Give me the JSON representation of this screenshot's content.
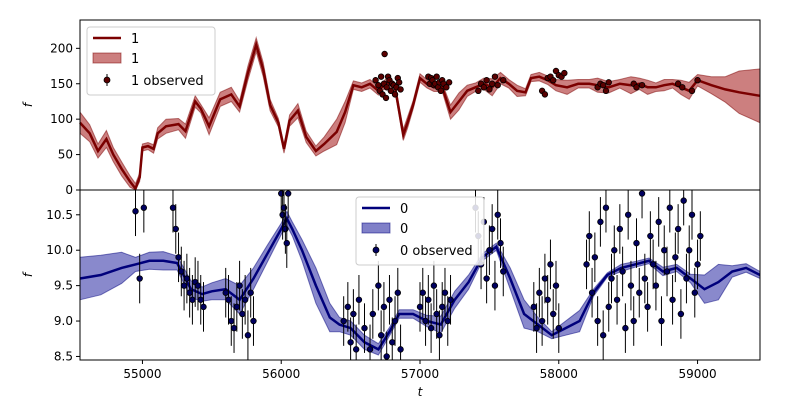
{
  "chart_data": [
    {
      "type": "line",
      "panel": "top",
      "xlabel": "",
      "ylabel": "f",
      "xlim": [
        54550,
        59450
      ],
      "ylim": [
        0,
        240
      ],
      "yticks": [
        0,
        50,
        100,
        150,
        200
      ],
      "xticks": [],
      "legend_position": "top-left",
      "legend": [
        {
          "label": "1",
          "kind": "line"
        },
        {
          "label": "1",
          "kind": "band"
        },
        {
          "label": "1 observed",
          "kind": "errorbar"
        }
      ],
      "colors": {
        "line": "#7b0000",
        "band": "#b03a3a",
        "marker": "#5a0000"
      },
      "series": [
        {
          "role": "mean",
          "x": [
            54550,
            54620,
            54680,
            54740,
            54790,
            54850,
            54910,
            54950,
            54980,
            55000,
            55040,
            55080,
            55110,
            55170,
            55260,
            55310,
            55380,
            55420,
            55480,
            55560,
            55640,
            55700,
            55760,
            55820,
            55870,
            55920,
            55980,
            56020,
            56060,
            56120,
            56180,
            56250,
            56310,
            56400,
            56460,
            56520,
            56580,
            56640,
            56700,
            56760,
            56820,
            56880,
            56910,
            56950,
            57000,
            57050,
            57100,
            57160,
            57220,
            57280,
            57340,
            57400,
            57460,
            57520,
            57580,
            57640,
            57700,
            57760,
            57800,
            57860,
            57920,
            57980,
            58060,
            58140,
            58220,
            58280,
            58360,
            58440,
            58520,
            58580,
            58640,
            58700,
            58760,
            58820,
            58880,
            58940,
            59000,
            59100,
            59200,
            59300,
            59450
          ],
          "y": [
            95,
            80,
            55,
            72,
            50,
            30,
            12,
            2,
            18,
            60,
            62,
            58,
            80,
            90,
            93,
            83,
            125,
            115,
            90,
            128,
            135,
            118,
            165,
            205,
            170,
            120,
            95,
            58,
            98,
            112,
            75,
            55,
            65,
            82,
            110,
            148,
            145,
            150,
            140,
            152,
            145,
            78,
            95,
            120,
            158,
            150,
            145,
            145,
            110,
            125,
            140,
            145,
            150,
            145,
            158,
            150,
            140,
            138,
            158,
            160,
            155,
            148,
            145,
            150,
            150,
            148,
            145,
            150,
            148,
            150,
            145,
            145,
            148,
            150,
            145,
            140,
            155,
            148,
            142,
            138,
            133
          ],
          "band_half_width": [
            15,
            12,
            10,
            12,
            10,
            10,
            8,
            7,
            6,
            5,
            5,
            6,
            8,
            10,
            8,
            10,
            8,
            6,
            12,
            10,
            10,
            8,
            10,
            10,
            10,
            8,
            6,
            6,
            8,
            10,
            8,
            7,
            10,
            18,
            15,
            6,
            6,
            6,
            6,
            6,
            6,
            8,
            8,
            6,
            6,
            6,
            6,
            6,
            10,
            12,
            8,
            6,
            8,
            12,
            8,
            6,
            8,
            5,
            5,
            6,
            6,
            8,
            10,
            6,
            6,
            10,
            8,
            6,
            12,
            8,
            10,
            6,
            8,
            6,
            10,
            12,
            8,
            12,
            18,
            30,
            38
          ]
        },
        {
          "role": "observed",
          "x": [
            56680,
            56700,
            56710,
            56720,
            56730,
            56740,
            56745,
            56755,
            56760,
            56770,
            56780,
            56790,
            56800,
            56810,
            56820,
            56830,
            56840,
            56850,
            56860,
            57060,
            57070,
            57080,
            57090,
            57100,
            57110,
            57120,
            57130,
            57140,
            57150,
            57160,
            57170,
            57190,
            57210,
            57420,
            57440,
            57460,
            57480,
            57500,
            57520,
            57540,
            57560,
            57600,
            57880,
            57900,
            57920,
            57940,
            57960,
            57980,
            58000,
            58020,
            58040,
            58280,
            58300,
            58320,
            58340,
            58360,
            58540,
            58560,
            58600,
            58860,
            58890,
            58960,
            59000
          ],
          "y": [
            155,
            148,
            140,
            160,
            135,
            150,
            192,
            130,
            145,
            160,
            155,
            140,
            150,
            148,
            135,
            145,
            158,
            152,
            142,
            160,
            150,
            158,
            155,
            148,
            150,
            160,
            145,
            152,
            140,
            155,
            150,
            145,
            152,
            140,
            150,
            145,
            155,
            142,
            150,
            160,
            148,
            155,
            140,
            135,
            158,
            160,
            155,
            168,
            162,
            160,
            165,
            145,
            150,
            148,
            140,
            152,
            150,
            145,
            148,
            150,
            145,
            140,
            155
          ]
        }
      ]
    },
    {
      "type": "line",
      "panel": "bottom",
      "xlabel": "t",
      "ylabel": "f",
      "xlim": [
        54550,
        59450
      ],
      "ylim": [
        8.45,
        10.85
      ],
      "yticks": [
        8.5,
        9.0,
        9.5,
        10.0,
        10.5
      ],
      "xticks": [
        55000,
        56000,
        57000,
        58000,
        59000
      ],
      "legend_position": "top-center",
      "legend": [
        {
          "label": "0",
          "kind": "line"
        },
        {
          "label": "0",
          "kind": "band"
        },
        {
          "label": "0 observed",
          "kind": "errorbar"
        }
      ],
      "colors": {
        "line": "#00007b",
        "band": "#4a4ab0",
        "marker": "#000060"
      },
      "series": [
        {
          "role": "mean",
          "x": [
            54550,
            54700,
            54850,
            54950,
            55050,
            55150,
            55250,
            55350,
            55430,
            55500,
            55600,
            55700,
            55800,
            55900,
            56000,
            56040,
            56080,
            56150,
            56250,
            56350,
            56420,
            56500,
            56600,
            56700,
            56780,
            56850,
            56950,
            57050,
            57150,
            57250,
            57350,
            57450,
            57550,
            57650,
            57750,
            57850,
            57950,
            58050,
            58150,
            58250,
            58350,
            58450,
            58550,
            58650,
            58750,
            58850,
            58950,
            59050,
            59150,
            59250,
            59350,
            59450
          ],
          "y": [
            9.6,
            9.65,
            9.75,
            9.8,
            9.85,
            9.85,
            9.82,
            9.45,
            9.38,
            9.42,
            9.45,
            9.3,
            9.6,
            9.95,
            10.3,
            10.45,
            10.3,
            10.0,
            9.5,
            9.05,
            8.95,
            8.9,
            8.7,
            8.6,
            8.85,
            9.1,
            9.1,
            9.0,
            8.95,
            9.3,
            9.55,
            9.9,
            10.05,
            9.6,
            9.1,
            8.95,
            8.8,
            8.9,
            9.0,
            9.4,
            9.65,
            9.75,
            9.8,
            9.85,
            9.7,
            9.75,
            9.6,
            9.45,
            9.55,
            9.7,
            9.75,
            9.65
          ],
          "band_half_width": [
            0.3,
            0.28,
            0.22,
            0.1,
            0.12,
            0.13,
            0.1,
            0.12,
            0.1,
            0.12,
            0.15,
            0.2,
            0.15,
            0.12,
            0.08,
            0.1,
            0.1,
            0.15,
            0.25,
            0.2,
            0.1,
            0.1,
            0.1,
            0.08,
            0.06,
            0.06,
            0.06,
            0.08,
            0.12,
            0.12,
            0.1,
            0.05,
            0.05,
            0.15,
            0.2,
            0.1,
            0.05,
            0.1,
            0.15,
            0.05,
            0.03,
            0.05,
            0.04,
            0.04,
            0.06,
            0.05,
            0.06,
            0.2,
            0.25,
            0.08,
            0.06,
            0.05
          ]
        },
        {
          "role": "observed",
          "x": [
            54950,
            54980,
            55010,
            55220,
            55240,
            55260,
            55280,
            55300,
            55320,
            55340,
            55360,
            55380,
            55400,
            55420,
            55440,
            55600,
            55620,
            55640,
            55660,
            55680,
            55700,
            55720,
            55740,
            55760,
            55780,
            55800,
            56000,
            56010,
            56020,
            56030,
            56040,
            56050,
            56450,
            56480,
            56500,
            56520,
            56540,
            56560,
            56600,
            56640,
            56660,
            56700,
            56720,
            56740,
            56760,
            56780,
            56800,
            56820,
            56840,
            56860,
            57000,
            57020,
            57040,
            57060,
            57080,
            57100,
            57120,
            57140,
            57160,
            57180,
            57200,
            57220,
            57400,
            57420,
            57440,
            57460,
            57480,
            57500,
            57520,
            57540,
            57560,
            57580,
            57600,
            57820,
            57840,
            57860,
            57880,
            57900,
            57920,
            57940,
            57960,
            57980,
            58000,
            58200,
            58220,
            58240,
            58260,
            58280,
            58300,
            58320,
            58340,
            58360,
            58380,
            58400,
            58420,
            58440,
            58460,
            58480,
            58500,
            58520,
            58540,
            58560,
            58580,
            58600,
            58620,
            58640,
            58660,
            58680,
            58700,
            58720,
            58740,
            58760,
            58780,
            58800,
            58820,
            58840,
            58860,
            58880,
            58900,
            58920,
            58940,
            58960,
            58980,
            59000,
            59020
          ],
          "y": [
            10.55,
            9.6,
            10.6,
            10.6,
            10.3,
            9.9,
            9.7,
            9.5,
            9.6,
            9.4,
            9.3,
            9.55,
            9.5,
            9.3,
            9.2,
            9.4,
            9.3,
            9.0,
            8.9,
            9.2,
            9.5,
            9.1,
            9.3,
            8.8,
            9.4,
            9.0,
            10.8,
            10.5,
            10.6,
            10.3,
            10.1,
            10.8,
            9.0,
            9.2,
            8.7,
            9.1,
            8.6,
            9.3,
            8.9,
            8.6,
            9.1,
            9.5,
            8.8,
            9.2,
            8.5,
            9.3,
            8.7,
            9.0,
            9.4,
            8.6,
            9.2,
            9.4,
            9.0,
            9.3,
            8.9,
            9.5,
            9.1,
            8.8,
            9.2,
            9.4,
            9.0,
            9.3,
            10.6,
            10.2,
            9.8,
            10.4,
            9.6,
            10.0,
            10.3,
            9.5,
            10.5,
            10.1,
            9.7,
            9.2,
            8.9,
            9.4,
            9.0,
            9.6,
            9.3,
            9.8,
            9.1,
            9.5,
            8.9,
            9.8,
            10.2,
            9.4,
            9.9,
            9.0,
            10.4,
            8.8,
            10.6,
            9.2,
            9.6,
            10.0,
            9.3,
            10.3,
            9.7,
            8.9,
            10.5,
            9.5,
            9.0,
            10.1,
            9.4,
            10.8,
            9.6,
            9.2,
            10.2,
            9.8,
            9.5,
            10.4,
            9.0,
            10.0,
            9.7,
            10.6,
            9.3,
            9.9,
            10.3,
            9.1,
            10.7,
            9.6,
            10.0,
            10.5,
            9.4,
            9.8,
            10.2
          ]
        }
      ]
    }
  ]
}
